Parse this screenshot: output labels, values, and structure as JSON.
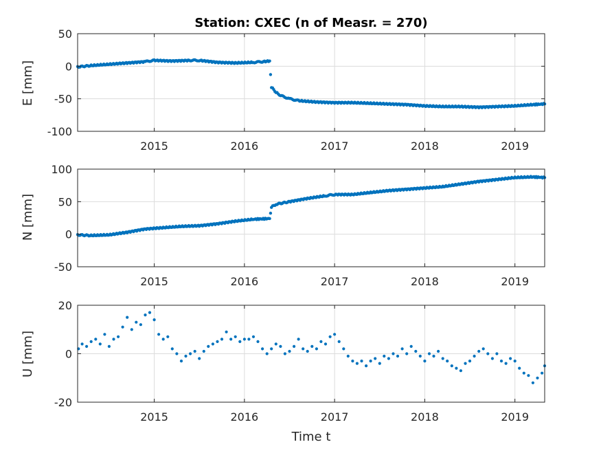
{
  "title": "Station: CXEC (n of Measr. = 270)",
  "xlabel": "Time t",
  "colors": {
    "series": "#0072bd",
    "grid": "#dcdcdc",
    "axis": "#262626"
  },
  "chart_data": [
    {
      "type": "scatter",
      "name": "east",
      "ylabel": "E [mm]",
      "xlim": [
        2014.15,
        2019.33
      ],
      "ylim": [
        -100,
        50
      ],
      "xticks": [
        2015,
        2016,
        2017,
        2018,
        2019
      ],
      "xtick_labels": [
        "2015",
        "2016",
        "2017",
        "2018",
        "2019"
      ],
      "yticks": [
        50,
        0,
        -50,
        -100
      ],
      "ytick_labels": [
        "50",
        "0",
        "-50",
        "-100"
      ],
      "series": [
        {
          "name": "E",
          "points": [
            [
              2014.15,
              -1
            ],
            [
              2014.3,
              1
            ],
            [
              2014.5,
              3
            ],
            [
              2014.7,
              5
            ],
            [
              2014.9,
              7
            ],
            [
              2015.0,
              9
            ],
            [
              2015.2,
              8
            ],
            [
              2015.4,
              9
            ],
            [
              2015.5,
              9
            ],
            [
              2015.7,
              6
            ],
            [
              2015.9,
              5
            ],
            [
              2016.1,
              6
            ],
            [
              2016.2,
              7
            ],
            [
              2016.28,
              8
            ],
            [
              2016.3,
              -32
            ],
            [
              2016.35,
              -40
            ],
            [
              2016.4,
              -45
            ],
            [
              2016.5,
              -50
            ],
            [
              2016.6,
              -53
            ],
            [
              2016.8,
              -55
            ],
            [
              2017.0,
              -56
            ],
            [
              2017.2,
              -56
            ],
            [
              2017.4,
              -57
            ],
            [
              2017.6,
              -58
            ],
            [
              2017.8,
              -59
            ],
            [
              2018.0,
              -61
            ],
            [
              2018.2,
              -62
            ],
            [
              2018.4,
              -62
            ],
            [
              2018.6,
              -63
            ],
            [
              2018.8,
              -62
            ],
            [
              2019.0,
              -61
            ],
            [
              2019.2,
              -59
            ],
            [
              2019.33,
              -58
            ]
          ]
        }
      ]
    },
    {
      "type": "scatter",
      "name": "north",
      "ylabel": "N [mm]",
      "xlim": [
        2014.15,
        2019.33
      ],
      "ylim": [
        -50,
        100
      ],
      "xticks": [
        2015,
        2016,
        2017,
        2018,
        2019
      ],
      "xtick_labels": [
        "2015",
        "2016",
        "2017",
        "2018",
        "2019"
      ],
      "yticks": [
        100,
        50,
        0,
        -50
      ],
      "ytick_labels": [
        "100",
        "50",
        "0",
        "-50"
      ],
      "series": [
        {
          "name": "N",
          "points": [
            [
              2014.15,
              -1
            ],
            [
              2014.3,
              -2
            ],
            [
              2014.5,
              -1
            ],
            [
              2014.7,
              3
            ],
            [
              2014.9,
              8
            ],
            [
              2015.1,
              10
            ],
            [
              2015.3,
              12
            ],
            [
              2015.5,
              13
            ],
            [
              2015.7,
              16
            ],
            [
              2015.9,
              20
            ],
            [
              2016.1,
              23
            ],
            [
              2016.28,
              24
            ],
            [
              2016.3,
              42
            ],
            [
              2016.35,
              46
            ],
            [
              2016.5,
              50
            ],
            [
              2016.7,
              55
            ],
            [
              2016.9,
              59
            ],
            [
              2017.0,
              61
            ],
            [
              2017.2,
              61
            ],
            [
              2017.4,
              64
            ],
            [
              2017.6,
              67
            ],
            [
              2017.8,
              69
            ],
            [
              2018.0,
              71
            ],
            [
              2018.2,
              73
            ],
            [
              2018.4,
              77
            ],
            [
              2018.6,
              81
            ],
            [
              2018.8,
              84
            ],
            [
              2019.0,
              87
            ],
            [
              2019.2,
              88
            ],
            [
              2019.33,
              87
            ]
          ]
        }
      ]
    },
    {
      "type": "scatter",
      "name": "up",
      "ylabel": "U [mm]",
      "xlim": [
        2014.15,
        2019.33
      ],
      "ylim": [
        -20,
        20
      ],
      "xticks": [
        2015,
        2016,
        2017,
        2018,
        2019
      ],
      "xtick_labels": [
        "2015",
        "2016",
        "2017",
        "2018",
        "2019"
      ],
      "yticks": [
        20,
        0,
        -20
      ],
      "ytick_labels": [
        "20",
        "0",
        "-20"
      ],
      "series": [
        {
          "name": "U",
          "points": [
            [
              2014.16,
              2
            ],
            [
              2014.2,
              4
            ],
            [
              2014.25,
              3
            ],
            [
              2014.3,
              5
            ],
            [
              2014.35,
              6
            ],
            [
              2014.4,
              4
            ],
            [
              2014.45,
              8
            ],
            [
              2014.5,
              3
            ],
            [
              2014.55,
              6
            ],
            [
              2014.6,
              7
            ],
            [
              2014.65,
              11
            ],
            [
              2014.7,
              15
            ],
            [
              2014.75,
              10
            ],
            [
              2014.8,
              13
            ],
            [
              2014.85,
              12
            ],
            [
              2014.9,
              16
            ],
            [
              2014.95,
              17
            ],
            [
              2015.0,
              14
            ],
            [
              2015.05,
              8
            ],
            [
              2015.1,
              6
            ],
            [
              2015.15,
              7
            ],
            [
              2015.2,
              2
            ],
            [
              2015.25,
              0
            ],
            [
              2015.3,
              -3
            ],
            [
              2015.35,
              -1
            ],
            [
              2015.4,
              0
            ],
            [
              2015.45,
              1
            ],
            [
              2015.5,
              -2
            ],
            [
              2015.55,
              1
            ],
            [
              2015.6,
              3
            ],
            [
              2015.65,
              4
            ],
            [
              2015.7,
              5
            ],
            [
              2015.75,
              6
            ],
            [
              2015.8,
              9
            ],
            [
              2015.85,
              6
            ],
            [
              2015.9,
              7
            ],
            [
              2015.95,
              5
            ],
            [
              2016.0,
              6
            ],
            [
              2016.05,
              6
            ],
            [
              2016.1,
              7
            ],
            [
              2016.15,
              5
            ],
            [
              2016.2,
              2
            ],
            [
              2016.25,
              0
            ],
            [
              2016.3,
              2
            ],
            [
              2016.35,
              4
            ],
            [
              2016.4,
              3
            ],
            [
              2016.45,
              0
            ],
            [
              2016.5,
              1
            ],
            [
              2016.55,
              3
            ],
            [
              2016.6,
              6
            ],
            [
              2016.65,
              2
            ],
            [
              2016.7,
              1
            ],
            [
              2016.75,
              3
            ],
            [
              2016.8,
              2
            ],
            [
              2016.85,
              5
            ],
            [
              2016.9,
              4
            ],
            [
              2016.95,
              7
            ],
            [
              2017.0,
              8
            ],
            [
              2017.05,
              5
            ],
            [
              2017.1,
              2
            ],
            [
              2017.15,
              -1
            ],
            [
              2017.2,
              -3
            ],
            [
              2017.25,
              -4
            ],
            [
              2017.3,
              -3
            ],
            [
              2017.35,
              -5
            ],
            [
              2017.4,
              -3
            ],
            [
              2017.45,
              -2
            ],
            [
              2017.5,
              -4
            ],
            [
              2017.55,
              -1
            ],
            [
              2017.6,
              -2
            ],
            [
              2017.65,
              0
            ],
            [
              2017.7,
              -1
            ],
            [
              2017.75,
              2
            ],
            [
              2017.8,
              0
            ],
            [
              2017.85,
              3
            ],
            [
              2017.9,
              1
            ],
            [
              2017.95,
              -1
            ],
            [
              2018.0,
              -3
            ],
            [
              2018.05,
              0
            ],
            [
              2018.1,
              -1
            ],
            [
              2018.15,
              1
            ],
            [
              2018.2,
              -2
            ],
            [
              2018.25,
              -3
            ],
            [
              2018.3,
              -5
            ],
            [
              2018.35,
              -6
            ],
            [
              2018.4,
              -7
            ],
            [
              2018.45,
              -4
            ],
            [
              2018.5,
              -3
            ],
            [
              2018.55,
              -1
            ],
            [
              2018.6,
              1
            ],
            [
              2018.65,
              2
            ],
            [
              2018.7,
              0
            ],
            [
              2018.75,
              -2
            ],
            [
              2018.8,
              0
            ],
            [
              2018.85,
              -3
            ],
            [
              2018.9,
              -4
            ],
            [
              2018.95,
              -2
            ],
            [
              2019.0,
              -3
            ],
            [
              2019.05,
              -6
            ],
            [
              2019.1,
              -8
            ],
            [
              2019.15,
              -9
            ],
            [
              2019.2,
              -12
            ],
            [
              2019.25,
              -10
            ],
            [
              2019.3,
              -8
            ],
            [
              2019.33,
              -5
            ]
          ]
        }
      ]
    }
  ]
}
